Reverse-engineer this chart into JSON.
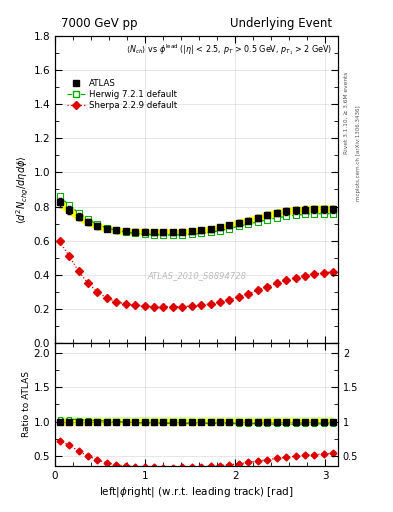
{
  "title_left": "7000 GeV pp",
  "title_right": "Underlying Event",
  "ylabel_main": "$\\langle d^2 N_{chg}/d\\eta d\\phi \\rangle$",
  "ylabel_ratio": "Ratio to ATLAS",
  "xlabel": "left|$\\phi$right| (w.r.t. leading track) [rad]",
  "watermark": "ATLAS_2010_S8894728",
  "right_label": "Rivet 3.1.10, ≥ 3.6M events",
  "right_label2": "mcplots.cern.ch [arXiv:1306.3436]",
  "xmin": 0,
  "xmax": 3.14159,
  "ylim_main": [
    0.0,
    1.8
  ],
  "ylim_ratio": [
    0.35,
    2.15
  ],
  "atlas_x": [
    0.05,
    0.157,
    0.262,
    0.367,
    0.471,
    0.576,
    0.681,
    0.785,
    0.89,
    0.995,
    1.099,
    1.204,
    1.309,
    1.414,
    1.518,
    1.623,
    1.728,
    1.833,
    1.937,
    2.042,
    2.147,
    2.251,
    2.356,
    2.461,
    2.566,
    2.67,
    2.775,
    2.88,
    2.985,
    3.089
  ],
  "atlas_y": [
    0.825,
    0.78,
    0.74,
    0.71,
    0.685,
    0.67,
    0.66,
    0.655,
    0.653,
    0.652,
    0.65,
    0.65,
    0.65,
    0.652,
    0.655,
    0.66,
    0.667,
    0.677,
    0.69,
    0.705,
    0.718,
    0.733,
    0.748,
    0.762,
    0.772,
    0.778,
    0.782,
    0.784,
    0.784,
    0.783
  ],
  "atlas_yerr": [
    0.025,
    0.022,
    0.02,
    0.018,
    0.017,
    0.016,
    0.016,
    0.015,
    0.015,
    0.015,
    0.015,
    0.015,
    0.015,
    0.015,
    0.015,
    0.015,
    0.015,
    0.016,
    0.016,
    0.017,
    0.017,
    0.018,
    0.018,
    0.019,
    0.019,
    0.02,
    0.02,
    0.021,
    0.021,
    0.022
  ],
  "herwig_x": [
    0.05,
    0.157,
    0.262,
    0.367,
    0.471,
    0.576,
    0.681,
    0.785,
    0.89,
    0.995,
    1.099,
    1.204,
    1.309,
    1.414,
    1.518,
    1.623,
    1.728,
    1.833,
    1.937,
    2.042,
    2.147,
    2.251,
    2.356,
    2.461,
    2.566,
    2.67,
    2.775,
    2.88,
    2.985,
    3.089
  ],
  "herwig_y": [
    0.86,
    0.808,
    0.762,
    0.724,
    0.695,
    0.674,
    0.66,
    0.65,
    0.643,
    0.638,
    0.635,
    0.633,
    0.633,
    0.634,
    0.637,
    0.642,
    0.649,
    0.659,
    0.671,
    0.684,
    0.697,
    0.71,
    0.722,
    0.733,
    0.742,
    0.749,
    0.754,
    0.757,
    0.758,
    0.758
  ],
  "sherpa_x": [
    0.05,
    0.157,
    0.262,
    0.367,
    0.471,
    0.576,
    0.681,
    0.785,
    0.89,
    0.995,
    1.099,
    1.204,
    1.309,
    1.414,
    1.518,
    1.623,
    1.728,
    1.833,
    1.937,
    2.042,
    2.147,
    2.251,
    2.356,
    2.461,
    2.566,
    2.67,
    2.775,
    2.88,
    2.985,
    3.089
  ],
  "sherpa_y": [
    0.595,
    0.51,
    0.42,
    0.35,
    0.3,
    0.263,
    0.242,
    0.228,
    0.22,
    0.215,
    0.213,
    0.212,
    0.212,
    0.214,
    0.217,
    0.222,
    0.23,
    0.24,
    0.253,
    0.27,
    0.289,
    0.31,
    0.33,
    0.35,
    0.368,
    0.383,
    0.395,
    0.405,
    0.412,
    0.418
  ],
  "atlas_color": "#000000",
  "atlas_band_color": "#ffff00",
  "herwig_color": "#00aa00",
  "herwig_band_color": "#ccff99",
  "sherpa_color": "#dd0000",
  "bg_color": "#ffffff",
  "grid_color": "#aaaaaa"
}
